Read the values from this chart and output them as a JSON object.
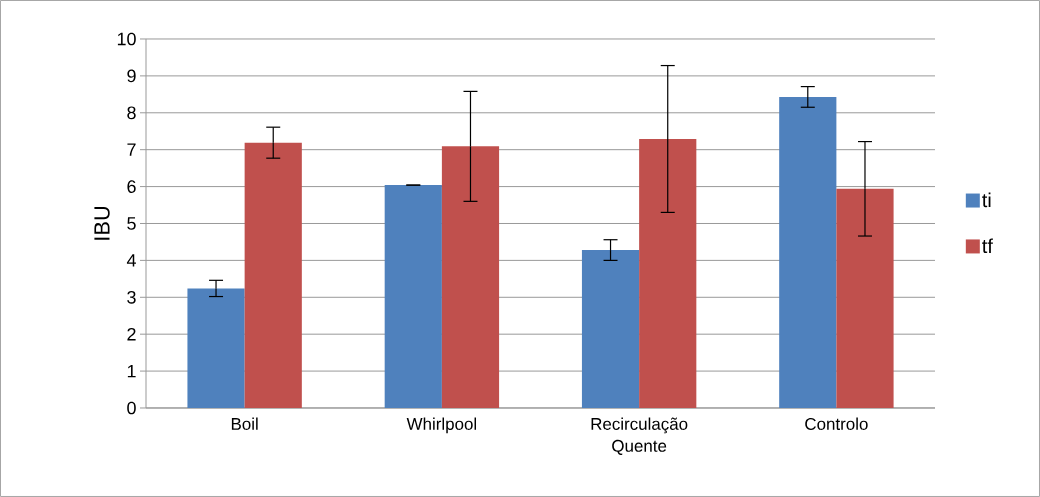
{
  "chart_data": {
    "type": "bar",
    "ylabel": "IBU",
    "categories": [
      "Boil",
      "Whirlpool",
      "Recirculação Quente",
      "Controlo"
    ],
    "series": [
      {
        "name": "ti",
        "color": "#4f81bd",
        "values": [
          3.24,
          6.04,
          4.28,
          8.43
        ],
        "errors": [
          0.22,
          0,
          0.28,
          0.28
        ]
      },
      {
        "name": "tf",
        "color": "#c0504d",
        "values": [
          7.19,
          7.09,
          7.29,
          5.94
        ],
        "errors": [
          0.42,
          1.49,
          1.99,
          1.28
        ]
      }
    ],
    "ylim": [
      0,
      10
    ],
    "yticks": [
      0,
      1,
      2,
      3,
      4,
      5,
      6,
      7,
      8,
      9,
      10
    ],
    "grid": "y",
    "legend": "right"
  }
}
